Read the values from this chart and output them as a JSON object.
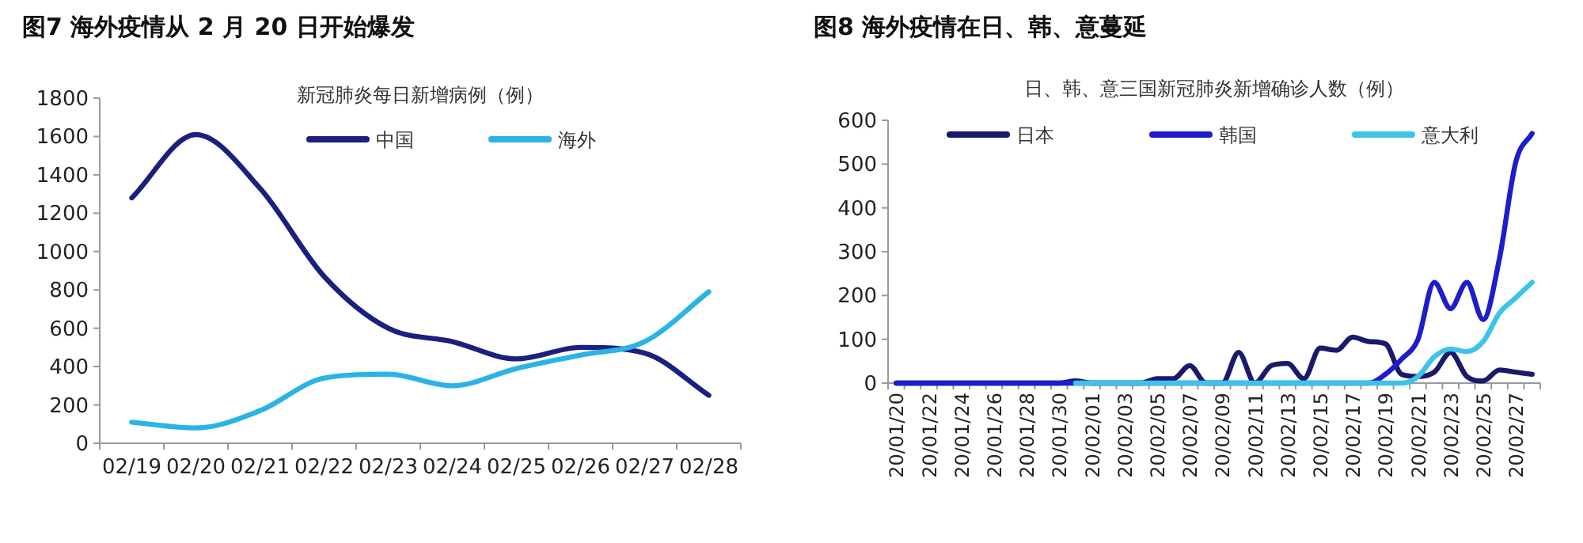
{
  "chart_data": [
    {
      "type": "line",
      "title": "图7  海外疫情从 2 月 20 日开始爆发",
      "subtitle": "新冠肺炎每日新增病例（例）",
      "categories": [
        "02/19",
        "02/20",
        "02/21",
        "02/22",
        "02/23",
        "02/24",
        "02/25",
        "02/26",
        "02/27",
        "02/28"
      ],
      "series": [
        {
          "name": "中国",
          "color": "#1b1f7e",
          "values": [
            1280,
            1610,
            1330,
            870,
            600,
            530,
            440,
            500,
            470,
            250
          ]
        },
        {
          "name": "海外",
          "color": "#2bb3e6",
          "values": [
            110,
            80,
            170,
            340,
            360,
            300,
            390,
            460,
            530,
            790
          ]
        }
      ],
      "ylim": [
        0,
        1800
      ],
      "yticks": [
        0,
        200,
        400,
        600,
        800,
        1000,
        1200,
        1400,
        1600,
        1800
      ],
      "grid": false,
      "legend": "top",
      "marker": "none",
      "line_style": "solid"
    },
    {
      "type": "line",
      "title": "图8  海外疫情在日、韩、意蔓延",
      "subtitle": "日、韩、意三国新冠肺炎新增确诊人数（例）",
      "categories": [
        "20/01/20",
        null,
        "20/01/22",
        null,
        "20/01/24",
        null,
        "20/01/26",
        null,
        "20/01/28",
        null,
        "20/01/30",
        null,
        "20/02/01",
        null,
        "20/02/03",
        null,
        "20/02/05",
        null,
        "20/02/07",
        null,
        "20/02/09",
        null,
        "20/02/11",
        null,
        "20/02/13",
        null,
        "20/02/15",
        null,
        "20/02/17",
        null,
        "20/02/19",
        null,
        "20/02/21",
        null,
        "20/02/23",
        null,
        "20/02/25",
        null,
        "20/02/27",
        null
      ],
      "series": [
        {
          "name": "日本",
          "color": "#1a1a6c",
          "values": [
            0,
            0,
            0,
            0,
            0,
            0,
            0,
            0,
            0,
            0,
            0,
            5,
            0,
            0,
            0,
            0,
            10,
            10,
            40,
            0,
            0,
            70,
            0,
            40,
            45,
            10,
            80,
            75,
            105,
            95,
            90,
            20,
            15,
            25,
            70,
            15,
            5,
            30,
            25,
            20
          ]
        },
        {
          "name": "韩国",
          "color": "#1d1dcc",
          "values": [
            0,
            0,
            0,
            0,
            0,
            0,
            0,
            0,
            0,
            0,
            0,
            0,
            0,
            0,
            0,
            0,
            0,
            0,
            0,
            0,
            0,
            0,
            0,
            0,
            0,
            0,
            0,
            0,
            0,
            0,
            20,
            55,
            100,
            230,
            170,
            230,
            145,
            285,
            505,
            570
          ]
        },
        {
          "name": "意大利",
          "color": "#3dc3ea",
          "values": [
            null,
            null,
            null,
            null,
            null,
            null,
            null,
            null,
            null,
            null,
            null,
            0,
            0,
            0,
            0,
            0,
            0,
            0,
            0,
            0,
            0,
            0,
            0,
            0,
            0,
            0,
            0,
            0,
            0,
            0,
            0,
            0,
            15,
            60,
            78,
            72,
            95,
            160,
            195,
            230
          ]
        }
      ],
      "ylim": [
        0,
        600
      ],
      "yticks": [
        0,
        100,
        200,
        300,
        400,
        500,
        600
      ],
      "grid": false,
      "legend": "top",
      "marker": "none",
      "line_style": "solid"
    }
  ]
}
